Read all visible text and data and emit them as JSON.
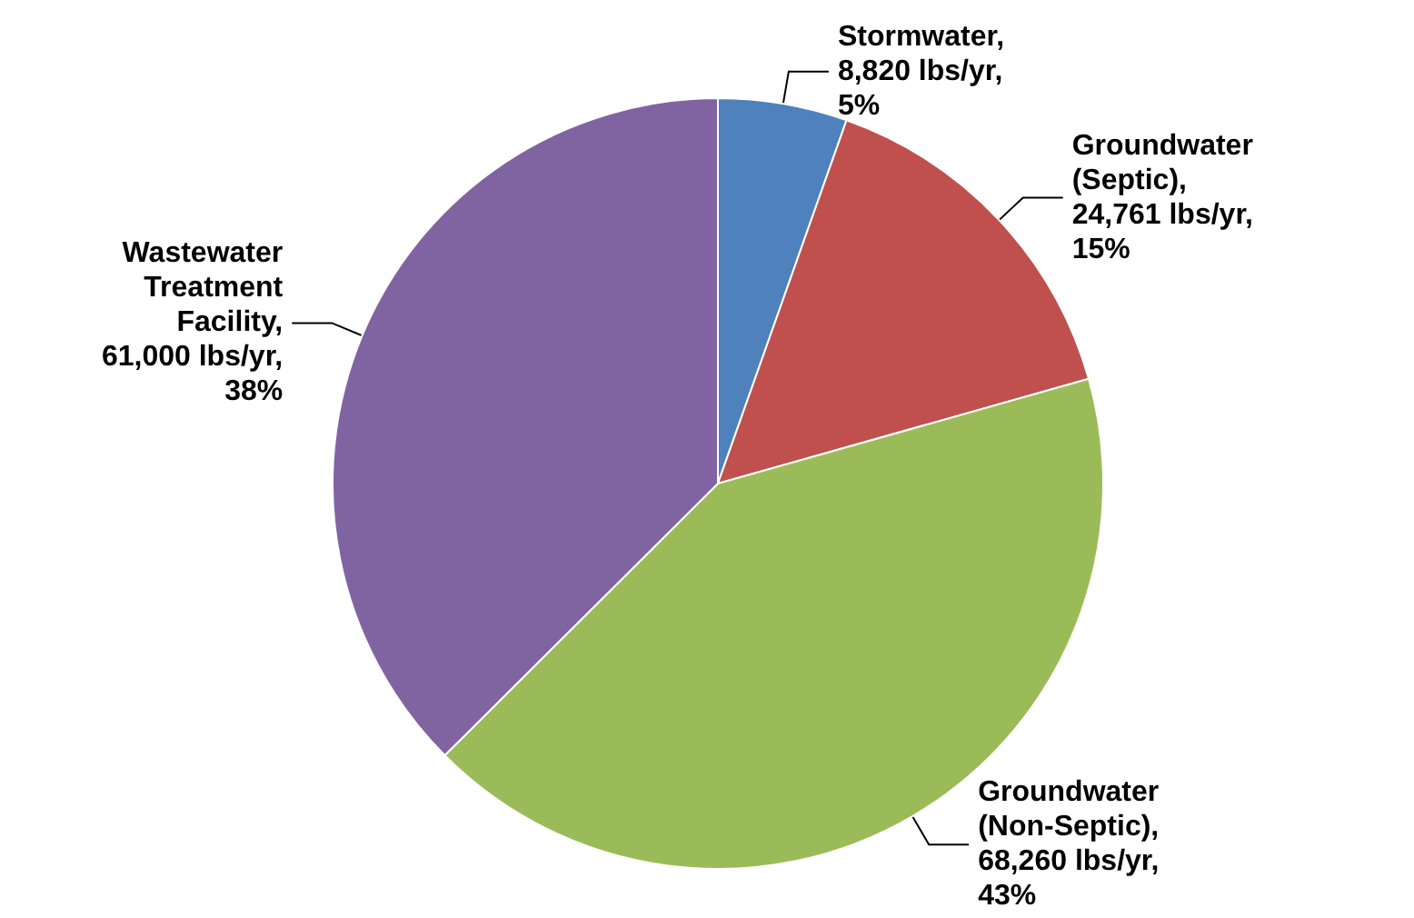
{
  "chart_data": {
    "type": "pie",
    "categories": [
      "Stormwater",
      "Groundwater (Septic)",
      "Groundwater (Non-Septic)",
      "Wastewater Treatment Facility"
    ],
    "values": [
      8820,
      24761,
      68260,
      61000
    ],
    "value_labels": [
      ", 8,820 lbs/yr, 5%",
      ", 24,761 lbs/yr, 15%",
      ", 68,260 lbs/yr, 43%",
      ", 61,000 lbs/yr, 38%"
    ],
    "colors": [
      "#4f81bd",
      "#c0504d",
      "#9bbb59",
      "#8064a2"
    ],
    "legend": false
  }
}
